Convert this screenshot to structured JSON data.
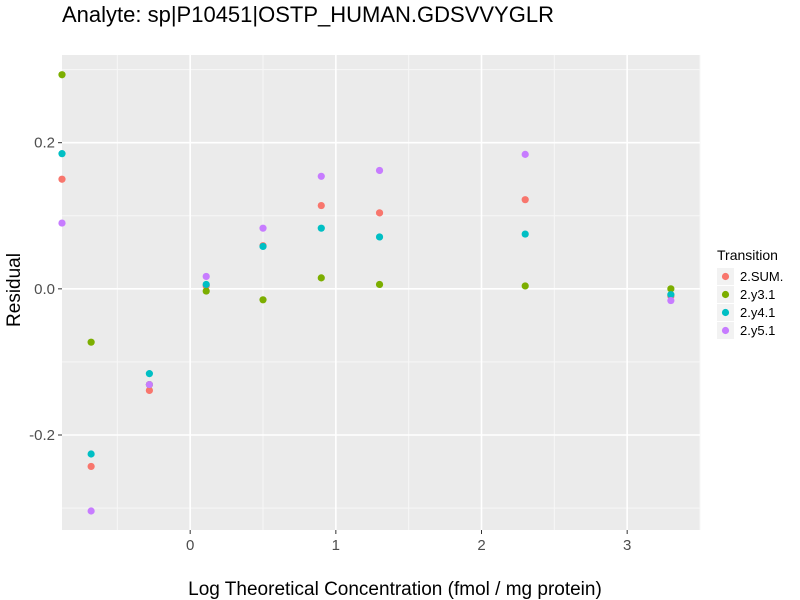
{
  "chart_data": {
    "type": "scatter",
    "title": "Analyte: sp|P10451|OSTP_HUMAN.GDSVVYGLR",
    "xlabel": "Log Theoretical Concentration (fmol / mg protein)",
    "ylabel": "Residual",
    "xlim": [
      -0.88,
      3.5
    ],
    "ylim": [
      -0.33,
      0.32
    ],
    "x_ticks": [
      0,
      1,
      2,
      3
    ],
    "x_tick_labels": [
      "0",
      "1",
      "2",
      "3"
    ],
    "y_ticks": [
      -0.2,
      0.0,
      0.2
    ],
    "y_tick_labels": [
      "-0.2",
      "0.0",
      "0.2"
    ],
    "grid": true,
    "legend": {
      "title": "Transition",
      "position": "right"
    },
    "series": [
      {
        "name": "2.SUM.",
        "color": "#F8766D",
        "points": [
          [
            -0.88,
            0.15
          ],
          [
            -0.68,
            -0.243
          ],
          [
            -0.28,
            -0.139
          ],
          [
            0.11,
            0.004
          ],
          [
            0.5,
            0.059
          ],
          [
            0.9,
            0.114
          ],
          [
            1.3,
            0.104
          ],
          [
            2.3,
            0.122
          ],
          [
            3.3,
            -0.01
          ]
        ]
      },
      {
        "name": "2.y3.1",
        "color": "#7CAE00",
        "points": [
          [
            -0.88,
            0.293
          ],
          [
            -0.68,
            -0.073
          ],
          [
            -0.28,
            -0.131
          ],
          [
            0.11,
            -0.003
          ],
          [
            0.5,
            -0.015
          ],
          [
            0.9,
            0.015
          ],
          [
            1.3,
            0.006
          ],
          [
            2.3,
            0.004
          ],
          [
            3.3,
            0.0
          ]
        ]
      },
      {
        "name": "2.y4.1",
        "color": "#00BFC4",
        "points": [
          [
            -0.88,
            0.185
          ],
          [
            -0.68,
            -0.226
          ],
          [
            -0.28,
            -0.116
          ],
          [
            0.11,
            0.006
          ],
          [
            0.5,
            0.058
          ],
          [
            0.9,
            0.083
          ],
          [
            1.3,
            0.071
          ],
          [
            2.3,
            0.075
          ],
          [
            3.3,
            -0.008
          ]
        ]
      },
      {
        "name": "2.y5.1",
        "color": "#C77CFF",
        "points": [
          [
            -0.88,
            0.09
          ],
          [
            -0.68,
            -0.304
          ],
          [
            -0.28,
            -0.131
          ],
          [
            0.11,
            0.017
          ],
          [
            0.5,
            0.083
          ],
          [
            0.9,
            0.154
          ],
          [
            1.3,
            0.162
          ],
          [
            2.3,
            0.184
          ],
          [
            3.3,
            -0.016
          ]
        ]
      }
    ]
  }
}
